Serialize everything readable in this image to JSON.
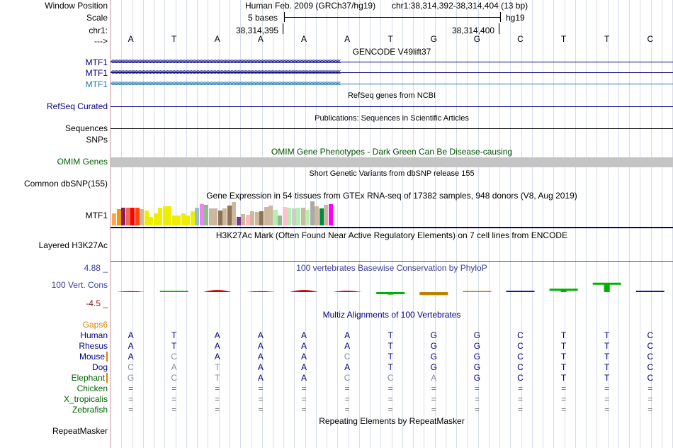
{
  "labels": {
    "window_position": "Window Position",
    "scale": "Scale",
    "chr": "chr1:",
    "arrow": "--->",
    "mtf1_a": "MTF1",
    "mtf1_b": "MTF1",
    "mtf1_c": "MTF1",
    "refseq": "RefSeq Curated",
    "sequences": "Sequences",
    "snps": "SNPs",
    "omim": "OMIM Genes",
    "dbsnp": "Common dbSNP(155)",
    "gtex_gene": "MTF1",
    "h3k27ac": "Layered H3K27Ac",
    "cons_max": "4.88 _",
    "cons": "100 Vert. Cons",
    "cons_min": "-4.5 _",
    "gaps": "Gaps6",
    "human": "Human",
    "rhesus": "Rhesus",
    "mouse": "Mouse",
    "dog": "Dog",
    "elephant": "Elephant",
    "chicken": "Chicken",
    "xtrop": "X_tropicalis",
    "zebrafish": "Zebrafish",
    "repeatmasker": "RepeatMasker"
  },
  "header": {
    "assembly": "Human Feb. 2009 (GRCh37/hg19)",
    "position": "chr1:38,314,392-38,314,404 (13 bp)",
    "scale_text": "5 bases",
    "db": "hg19",
    "coord_left": "38,314,395",
    "coord_right": "38,314,400"
  },
  "bases": [
    "A",
    "T",
    "A",
    "A",
    "A",
    "A",
    "T",
    "G",
    "G",
    "C",
    "T",
    "T",
    "C"
  ],
  "track_titles": {
    "gencode": "GENCODE V49lift37",
    "refseq": "RefSeq genes from NCBI",
    "publications": "Publications: Sequences in Scientific Articles",
    "omim": "OMIM Gene Phenotypes - Dark Green Can Be Disease-causing",
    "dbsnp": "Short Genetic Variants from dbSNP release 155",
    "gtex": "Gene Expression in 54 tissues from GTEx RNA-seq of 17382 samples, 948 donors (V8, Aug 2019)",
    "h3k27ac": "H3K27Ac Mark (Often Found Near Active Regulatory Elements) on 7 cell lines from ENCODE",
    "phylop": "100 vertebrates Basewise Conservation by PhyloP",
    "multiz": "Multiz Alignments of 100 Vertebrates",
    "repeatmasker": "Repeating Elements by RepeatMasker"
  },
  "gene_arrows": "‹‹‹‹‹‹‹‹‹‹‹‹‹‹‹‹‹‹‹‹‹‹‹‹‹‹‹‹‹‹‹‹‹‹‹‹‹‹‹‹‹‹‹‹‹‹‹‹‹‹‹‹‹‹‹‹‹‹‹‹‹‹‹‹‹‹‹‹‹‹‹‹‹‹‹‹‹‹‹‹‹‹‹‹‹‹‹‹‹‹‹‹‹‹‹‹‹‹‹‹‹‹‹‹‹‹‹‹‹‹‹‹‹‹‹‹‹‹‹‹‹‹‹‹‹‹‹‹‹‹‹‹‹‹‹‹‹‹‹‹‹‹‹‹‹‹‹‹‹‹‹‹‹‹‹‹‹‹‹‹‹‹",
  "gtex": {
    "colors": [
      "#ffa54f",
      "#ee9a00",
      "#8b1c62",
      "#ee6a50",
      "#ff0000",
      "#ff4500",
      "#cdb79e",
      "#eeee00",
      "#eeee00",
      "#eeee00",
      "#eeee00",
      "#eeee00",
      "#eeee00",
      "#eeee00",
      "#eeee00",
      "#eeee00",
      "#eeee00",
      "#eeee00",
      "#9ac0cd",
      "#ee82ee",
      "#8fbc8f",
      "#cdb79e",
      "#cdb79e",
      "#8b7355",
      "#cdb79e",
      "#8b7355",
      "#cdb79e",
      "#7a378b",
      "#cdb79e",
      "#ffb6c1",
      "#cdb79e",
      "#cdb79e",
      "#8b7355",
      "#cdb79e",
      "#cdb79e",
      "#b4eeb4",
      "#8fbc8f",
      "#ffc0cb",
      "#b4eeb4",
      "#cdcdcd",
      "#b4eeb4",
      "#cdb79e",
      "#b4eeb4",
      "#aaaaaa",
      "#cdb79e",
      "#008b45",
      "#cdb79e",
      "#ff00ff"
    ],
    "values": [
      17,
      23,
      25,
      25,
      25,
      25,
      23,
      21,
      12,
      17,
      25,
      27,
      27,
      14,
      14,
      17,
      14,
      20,
      25,
      30,
      29,
      24,
      24,
      21,
      24,
      28,
      33,
      12,
      16,
      15,
      20,
      19,
      20,
      26,
      28,
      22,
      14,
      26,
      25,
      24,
      25,
      25,
      22,
      34,
      27,
      24,
      29,
      30
    ]
  },
  "phylop_scores": [
    0.2,
    0.3,
    0.6,
    0.2,
    0.6,
    0.4,
    -0.6,
    -0.7,
    0.2,
    0.3,
    0.8,
    2.2,
    0.3
  ],
  "alignment": {
    "human": [
      "A",
      "T",
      "A",
      "A",
      "A",
      "A",
      "T",
      "G",
      "G",
      "C",
      "T",
      "T",
      "C"
    ],
    "rhesus": [
      "A",
      "T",
      "A",
      "A",
      "A",
      "A",
      "T",
      "G",
      "G",
      "C",
      "T",
      "T",
      "C"
    ],
    "mouse": [
      "A",
      "C",
      "A",
      "A",
      "A",
      "C",
      "T",
      "G",
      "G",
      "C",
      "T",
      "T",
      "C"
    ],
    "dog": [
      "C",
      "A",
      "T",
      "A",
      "A",
      "A",
      "T",
      "G",
      "G",
      "C",
      "T",
      "T",
      "C"
    ],
    "elephant": [
      "G",
      "C",
      "T",
      "A",
      "A",
      "C",
      "C",
      "A",
      "G",
      "C",
      "T",
      "T",
      "C"
    ],
    "chicken": [
      "=",
      "=",
      "=",
      "=",
      "=",
      "=",
      "=",
      "=",
      "=",
      "=",
      "=",
      "=",
      "="
    ],
    "xtrop": [
      "=",
      "=",
      "=",
      "=",
      "=",
      "=",
      "=",
      "=",
      "=",
      "=",
      "=",
      "=",
      "="
    ],
    "zebrafish": [
      "=",
      "=",
      "=",
      "=",
      "=",
      "=",
      "=",
      "=",
      "=",
      "=",
      "=",
      "=",
      "="
    ]
  },
  "colors": {
    "navy": "#000080",
    "gencode_teal": "#1f77b4",
    "green_label": "#006400",
    "omim_title": "#005000",
    "gaps_orange": "#e08000",
    "phylop_blue": "#3a3a9a",
    "cons_red": "#8b1a1a"
  }
}
